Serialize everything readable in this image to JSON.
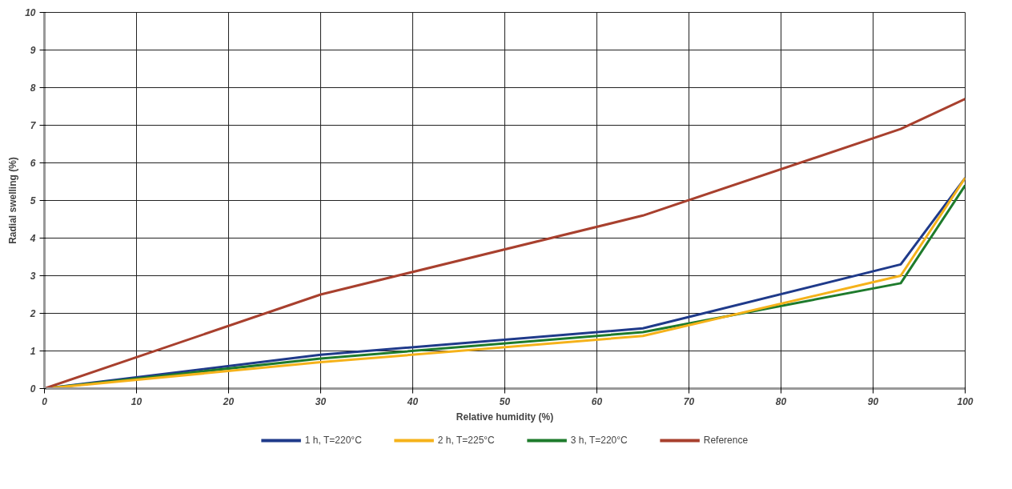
{
  "chart_data": {
    "type": "line",
    "xlabel": "Relative humidity (%)",
    "ylabel": "Radial swelling (%)",
    "x": [
      0,
      30,
      65,
      93,
      100
    ],
    "series": [
      {
        "name": "1 h, T=220°C",
        "color": "#1f3a8a",
        "values": [
          0,
          0.9,
          1.6,
          3.3,
          5.6
        ]
      },
      {
        "name": "2 h, T=225°C",
        "color": "#f5b21a",
        "values": [
          0,
          0.7,
          1.4,
          3.0,
          5.6
        ]
      },
      {
        "name": "3 h, T=220°C",
        "color": "#1e7b2c",
        "values": [
          0,
          0.8,
          1.5,
          2.8,
          5.4
        ]
      },
      {
        "name": "Reference",
        "color": "#a8402e",
        "values": [
          0,
          2.5,
          4.6,
          6.9,
          7.7
        ]
      }
    ],
    "xlim": [
      0,
      100
    ],
    "xticks": [
      0,
      10,
      20,
      30,
      40,
      50,
      60,
      70,
      80,
      90,
      100
    ],
    "ylim": [
      0,
      10
    ],
    "yticks": [
      0,
      1,
      2,
      3,
      4,
      5,
      6,
      7,
      8,
      9,
      10
    ],
    "grid": true,
    "legend": "bottom",
    "marker": "none",
    "line_style": "solid"
  }
}
